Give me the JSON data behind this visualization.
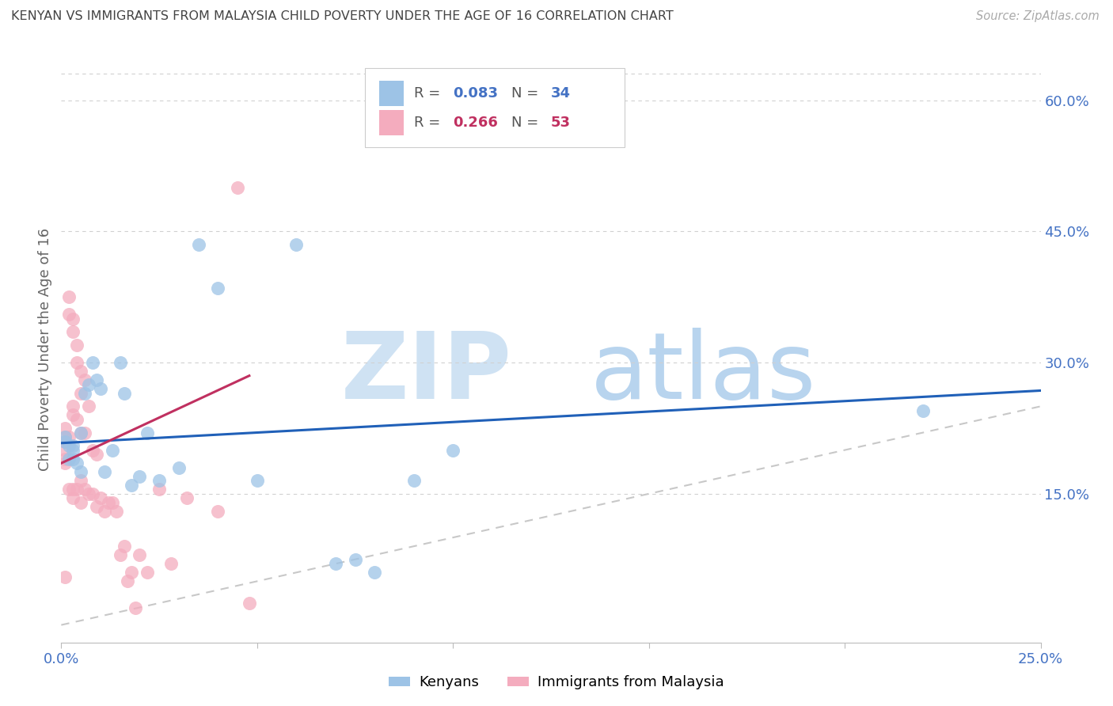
{
  "title": "KENYAN VS IMMIGRANTS FROM MALAYSIA CHILD POVERTY UNDER THE AGE OF 16 CORRELATION CHART",
  "source": "Source: ZipAtlas.com",
  "ylabel": "Child Poverty Under the Age of 16",
  "xlim": [
    0.0,
    0.25
  ],
  "ylim": [
    -0.02,
    0.65
  ],
  "xticks": [
    0.0,
    0.05,
    0.1,
    0.15,
    0.2,
    0.25
  ],
  "ytick_vals_right": [
    0.15,
    0.3,
    0.45,
    0.6
  ],
  "ytick_labels_right": [
    "15.0%",
    "30.0%",
    "45.0%",
    "60.0%"
  ],
  "kenyan_color": "#9dc3e6",
  "malaysia_color": "#f4acbe",
  "kenyan_line_color": "#2060b8",
  "malaysia_line_color": "#c03060",
  "diag_line_color": "#c8c8c8",
  "watermark_color": "#cfe2f3",
  "watermark_atlas_color": "#b8d4ee",
  "bg_color": "#ffffff",
  "grid_color": "#d0d0d0",
  "legend_R1": "0.083",
  "legend_N1": "34",
  "legend_R2": "0.266",
  "legend_N2": "53",
  "legend_label1": "Kenyans",
  "legend_label2": "Immigrants from Malaysia",
  "R1_color": "#4472c4",
  "N1_color": "#4472c4",
  "R2_color": "#c03060",
  "N2_color": "#c03060",
  "kenyan_x": [
    0.001,
    0.001,
    0.002,
    0.002,
    0.003,
    0.003,
    0.003,
    0.004,
    0.005,
    0.005,
    0.006,
    0.007,
    0.008,
    0.009,
    0.01,
    0.011,
    0.013,
    0.015,
    0.016,
    0.018,
    0.02,
    0.022,
    0.025,
    0.03,
    0.035,
    0.04,
    0.05,
    0.06,
    0.07,
    0.08,
    0.09,
    0.1,
    0.22,
    0.075
  ],
  "kenyan_y": [
    0.21,
    0.215,
    0.19,
    0.205,
    0.19,
    0.2,
    0.205,
    0.185,
    0.175,
    0.22,
    0.265,
    0.275,
    0.3,
    0.28,
    0.27,
    0.175,
    0.2,
    0.3,
    0.265,
    0.16,
    0.17,
    0.22,
    0.165,
    0.18,
    0.435,
    0.385,
    0.165,
    0.435,
    0.07,
    0.06,
    0.165,
    0.2,
    0.245,
    0.075
  ],
  "malaysia_x": [
    0.001,
    0.001,
    0.001,
    0.001,
    0.001,
    0.001,
    0.001,
    0.002,
    0.002,
    0.002,
    0.002,
    0.003,
    0.003,
    0.003,
    0.003,
    0.003,
    0.003,
    0.004,
    0.004,
    0.004,
    0.004,
    0.005,
    0.005,
    0.005,
    0.005,
    0.005,
    0.006,
    0.006,
    0.006,
    0.007,
    0.007,
    0.008,
    0.008,
    0.009,
    0.009,
    0.01,
    0.011,
    0.012,
    0.013,
    0.014,
    0.015,
    0.016,
    0.017,
    0.018,
    0.019,
    0.02,
    0.022,
    0.025,
    0.028,
    0.032,
    0.04,
    0.045,
    0.048
  ],
  "malaysia_y": [
    0.225,
    0.215,
    0.21,
    0.2,
    0.19,
    0.185,
    0.055,
    0.375,
    0.355,
    0.215,
    0.155,
    0.35,
    0.335,
    0.25,
    0.24,
    0.155,
    0.145,
    0.32,
    0.3,
    0.235,
    0.155,
    0.29,
    0.265,
    0.22,
    0.165,
    0.14,
    0.28,
    0.22,
    0.155,
    0.25,
    0.15,
    0.2,
    0.15,
    0.195,
    0.135,
    0.145,
    0.13,
    0.14,
    0.14,
    0.13,
    0.08,
    0.09,
    0.05,
    0.06,
    0.02,
    0.08,
    0.06,
    0.155,
    0.07,
    0.145,
    0.13,
    0.5,
    0.025
  ],
  "kenyan_trend_x": [
    0.0,
    0.25
  ],
  "kenyan_trend_y": [
    0.208,
    0.268
  ],
  "malaysia_trend_x": [
    0.0,
    0.048
  ],
  "malaysia_trend_y": [
    0.185,
    0.285
  ]
}
